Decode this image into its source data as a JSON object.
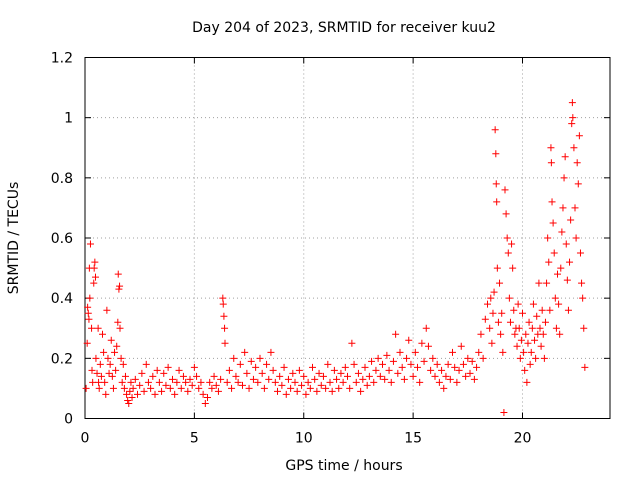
{
  "chart_data": {
    "type": "scatter",
    "title": "Day 204 of 2023, SRMTID for receiver kuu2",
    "xlabel": "GPS time / hours",
    "ylabel": "SRMTID / TECUs",
    "xlim": [
      0,
      24
    ],
    "ylim": [
      0,
      1.2
    ],
    "xticks": [
      0,
      5,
      10,
      15,
      20
    ],
    "xtick_labels": [
      "0",
      "5",
      "10",
      "15",
      "20"
    ],
    "yticks": [
      0,
      0.2,
      0.4,
      0.6,
      0.8,
      1,
      1.2
    ],
    "ytick_labels": [
      "0",
      "0.2",
      "0.4",
      "0.6",
      "0.8",
      "1",
      "1.2"
    ],
    "grid": true,
    "marker": "+",
    "color": "#ff0000",
    "series": [
      {
        "name": "SRMTID",
        "points": [
          [
            0.05,
            0.1
          ],
          [
            0.1,
            0.25
          ],
          [
            0.12,
            0.37
          ],
          [
            0.15,
            0.35
          ],
          [
            0.18,
            0.33
          ],
          [
            0.2,
            0.5
          ],
          [
            0.22,
            0.4
          ],
          [
            0.25,
            0.58
          ],
          [
            0.3,
            0.3
          ],
          [
            0.32,
            0.16
          ],
          [
            0.35,
            0.12
          ],
          [
            0.4,
            0.45
          ],
          [
            0.42,
            0.5
          ],
          [
            0.45,
            0.52
          ],
          [
            0.48,
            0.47
          ],
          [
            0.5,
            0.2
          ],
          [
            0.55,
            0.15
          ],
          [
            0.6,
            0.3
          ],
          [
            0.62,
            0.12
          ],
          [
            0.65,
            0.1
          ],
          [
            0.7,
            0.18
          ],
          [
            0.75,
            0.14
          ],
          [
            0.8,
            0.28
          ],
          [
            0.85,
            0.22
          ],
          [
            0.9,
            0.12
          ],
          [
            0.95,
            0.08
          ],
          [
            1.0,
            0.36
          ],
          [
            1.05,
            0.2
          ],
          [
            1.1,
            0.15
          ],
          [
            1.15,
            0.18
          ],
          [
            1.2,
            0.26
          ],
          [
            1.25,
            0.14
          ],
          [
            1.3,
            0.1
          ],
          [
            1.35,
            0.22
          ],
          [
            1.4,
            0.16
          ],
          [
            1.45,
            0.24
          ],
          [
            1.5,
            0.32
          ],
          [
            1.52,
            0.48
          ],
          [
            1.55,
            0.43
          ],
          [
            1.58,
            0.44
          ],
          [
            1.6,
            0.3
          ],
          [
            1.65,
            0.2
          ],
          [
            1.7,
            0.12
          ],
          [
            1.75,
            0.18
          ],
          [
            1.8,
            0.1
          ],
          [
            1.85,
            0.14
          ],
          [
            1.9,
            0.08
          ],
          [
            1.95,
            0.06
          ],
          [
            2.0,
            0.05
          ],
          [
            2.05,
            0.09
          ],
          [
            2.1,
            0.12
          ],
          [
            2.15,
            0.07
          ],
          [
            2.2,
            0.1
          ],
          [
            2.3,
            0.13
          ],
          [
            2.4,
            0.08
          ],
          [
            2.5,
            0.11
          ],
          [
            2.6,
            0.15
          ],
          [
            2.7,
            0.09
          ],
          [
            2.8,
            0.18
          ],
          [
            2.9,
            0.12
          ],
          [
            3.0,
            0.1
          ],
          [
            3.1,
            0.14
          ],
          [
            3.2,
            0.08
          ],
          [
            3.3,
            0.16
          ],
          [
            3.4,
            0.12
          ],
          [
            3.5,
            0.09
          ],
          [
            3.6,
            0.15
          ],
          [
            3.7,
            0.11
          ],
          [
            3.8,
            0.17
          ],
          [
            3.9,
            0.1
          ],
          [
            4.0,
            0.13
          ],
          [
            4.1,
            0.08
          ],
          [
            4.2,
            0.12
          ],
          [
            4.3,
            0.16
          ],
          [
            4.4,
            0.1
          ],
          [
            4.5,
            0.14
          ],
          [
            4.6,
            0.12
          ],
          [
            4.7,
            0.09
          ],
          [
            4.8,
            0.13
          ],
          [
            4.9,
            0.11
          ],
          [
            5.0,
            0.17
          ],
          [
            5.1,
            0.14
          ],
          [
            5.2,
            0.1
          ],
          [
            5.3,
            0.12
          ],
          [
            5.4,
            0.08
          ],
          [
            5.5,
            0.05
          ],
          [
            5.6,
            0.07
          ],
          [
            5.7,
            0.12
          ],
          [
            5.8,
            0.1
          ],
          [
            5.9,
            0.14
          ],
          [
            6.0,
            0.11
          ],
          [
            6.1,
            0.09
          ],
          [
            6.2,
            0.13
          ],
          [
            6.3,
            0.4
          ],
          [
            6.32,
            0.38
          ],
          [
            6.35,
            0.34
          ],
          [
            6.38,
            0.3
          ],
          [
            6.4,
            0.25
          ],
          [
            6.5,
            0.12
          ],
          [
            6.6,
            0.16
          ],
          [
            6.7,
            0.1
          ],
          [
            6.8,
            0.2
          ],
          [
            6.9,
            0.14
          ],
          [
            7.0,
            0.12
          ],
          [
            7.1,
            0.18
          ],
          [
            7.2,
            0.11
          ],
          [
            7.3,
            0.22
          ],
          [
            7.4,
            0.15
          ],
          [
            7.5,
            0.1
          ],
          [
            7.6,
            0.19
          ],
          [
            7.7,
            0.13
          ],
          [
            7.8,
            0.17
          ],
          [
            7.9,
            0.12
          ],
          [
            8.0,
            0.2
          ],
          [
            8.1,
            0.15
          ],
          [
            8.2,
            0.1
          ],
          [
            8.3,
            0.18
          ],
          [
            8.4,
            0.13
          ],
          [
            8.5,
            0.22
          ],
          [
            8.6,
            0.16
          ],
          [
            8.7,
            0.12
          ],
          [
            8.8,
            0.09
          ],
          [
            8.9,
            0.14
          ],
          [
            9.0,
            0.11
          ],
          [
            9.1,
            0.17
          ],
          [
            9.2,
            0.08
          ],
          [
            9.3,
            0.13
          ],
          [
            9.4,
            0.1
          ],
          [
            9.5,
            0.15
          ],
          [
            9.6,
            0.12
          ],
          [
            9.7,
            0.09
          ],
          [
            9.8,
            0.16
          ],
          [
            9.9,
            0.11
          ],
          [
            10.0,
            0.14
          ],
          [
            10.1,
            0.08
          ],
          [
            10.2,
            0.12
          ],
          [
            10.3,
            0.1
          ],
          [
            10.4,
            0.17
          ],
          [
            10.5,
            0.13
          ],
          [
            10.6,
            0.09
          ],
          [
            10.7,
            0.15
          ],
          [
            10.8,
            0.11
          ],
          [
            10.9,
            0.14
          ],
          [
            11.0,
            0.1
          ],
          [
            11.1,
            0.18
          ],
          [
            11.2,
            0.12
          ],
          [
            11.3,
            0.09
          ],
          [
            11.4,
            0.16
          ],
          [
            11.5,
            0.13
          ],
          [
            11.6,
            0.1
          ],
          [
            11.7,
            0.15
          ],
          [
            11.8,
            0.12
          ],
          [
            11.9,
            0.17
          ],
          [
            12.0,
            0.14
          ],
          [
            12.1,
            0.1
          ],
          [
            12.2,
            0.25
          ],
          [
            12.3,
            0.18
          ],
          [
            12.4,
            0.12
          ],
          [
            12.5,
            0.15
          ],
          [
            12.6,
            0.09
          ],
          [
            12.7,
            0.13
          ],
          [
            12.8,
            0.17
          ],
          [
            12.9,
            0.11
          ],
          [
            13.0,
            0.14
          ],
          [
            13.1,
            0.19
          ],
          [
            13.2,
            0.12
          ],
          [
            13.3,
            0.16
          ],
          [
            13.4,
            0.2
          ],
          [
            13.5,
            0.14
          ],
          [
            13.6,
            0.18
          ],
          [
            13.7,
            0.13
          ],
          [
            13.8,
            0.21
          ],
          [
            13.9,
            0.16
          ],
          [
            14.0,
            0.12
          ],
          [
            14.1,
            0.19
          ],
          [
            14.2,
            0.28
          ],
          [
            14.3,
            0.15
          ],
          [
            14.4,
            0.22
          ],
          [
            14.5,
            0.17
          ],
          [
            14.6,
            0.13
          ],
          [
            14.7,
            0.2
          ],
          [
            14.8,
            0.26
          ],
          [
            14.9,
            0.18
          ],
          [
            15.0,
            0.14
          ],
          [
            15.1,
            0.22
          ],
          [
            15.2,
            0.17
          ],
          [
            15.3,
            0.12
          ],
          [
            15.4,
            0.25
          ],
          [
            15.5,
            0.19
          ],
          [
            15.6,
            0.3
          ],
          [
            15.7,
            0.24
          ],
          [
            15.8,
            0.16
          ],
          [
            15.9,
            0.2
          ],
          [
            16.0,
            0.14
          ],
          [
            16.1,
            0.18
          ],
          [
            16.2,
            0.12
          ],
          [
            16.3,
            0.16
          ],
          [
            16.4,
            0.1
          ],
          [
            16.5,
            0.14
          ],
          [
            16.6,
            0.18
          ],
          [
            16.7,
            0.13
          ],
          [
            16.8,
            0.22
          ],
          [
            16.9,
            0.17
          ],
          [
            17.0,
            0.12
          ],
          [
            17.1,
            0.16
          ],
          [
            17.2,
            0.24
          ],
          [
            17.3,
            0.18
          ],
          [
            17.4,
            0.14
          ],
          [
            17.5,
            0.2
          ],
          [
            17.6,
            0.15
          ],
          [
            17.7,
            0.19
          ],
          [
            17.8,
            0.13
          ],
          [
            17.9,
            0.17
          ],
          [
            18.0,
            0.22
          ],
          [
            18.1,
            0.28
          ],
          [
            18.2,
            0.2
          ],
          [
            18.3,
            0.33
          ],
          [
            18.4,
            0.38
          ],
          [
            18.5,
            0.3
          ],
          [
            18.55,
            0.4
          ],
          [
            18.6,
            0.25
          ],
          [
            18.65,
            0.35
          ],
          [
            18.7,
            0.42
          ],
          [
            18.75,
            0.96
          ],
          [
            18.78,
            0.88
          ],
          [
            18.8,
            0.78
          ],
          [
            18.82,
            0.72
          ],
          [
            18.85,
            0.5
          ],
          [
            18.9,
            0.32
          ],
          [
            18.95,
            0.45
          ],
          [
            19.0,
            0.28
          ],
          [
            19.05,
            0.35
          ],
          [
            19.1,
            0.22
          ],
          [
            19.15,
            0.02
          ],
          [
            19.2,
            0.76
          ],
          [
            19.25,
            0.68
          ],
          [
            19.3,
            0.6
          ],
          [
            19.35,
            0.55
          ],
          [
            19.4,
            0.4
          ],
          [
            19.45,
            0.32
          ],
          [
            19.5,
            0.58
          ],
          [
            19.55,
            0.5
          ],
          [
            19.6,
            0.36
          ],
          [
            19.65,
            0.28
          ],
          [
            19.7,
            0.3
          ],
          [
            19.75,
            0.24
          ],
          [
            19.8,
            0.38
          ],
          [
            19.85,
            0.3
          ],
          [
            19.9,
            0.2
          ],
          [
            19.95,
            0.26
          ],
          [
            20.0,
            0.35
          ],
          [
            20.05,
            0.22
          ],
          [
            20.1,
            0.16
          ],
          [
            20.15,
            0.28
          ],
          [
            20.2,
            0.12
          ],
          [
            20.25,
            0.25
          ],
          [
            20.3,
            0.32
          ],
          [
            20.35,
            0.18
          ],
          [
            20.4,
            0.22
          ],
          [
            20.45,
            0.3
          ],
          [
            20.5,
            0.38
          ],
          [
            20.55,
            0.26
          ],
          [
            20.6,
            0.2
          ],
          [
            20.65,
            0.34
          ],
          [
            20.7,
            0.28
          ],
          [
            20.75,
            0.45
          ],
          [
            20.8,
            0.3
          ],
          [
            20.85,
            0.24
          ],
          [
            20.9,
            0.36
          ],
          [
            20.95,
            0.28
          ],
          [
            21.0,
            0.2
          ],
          [
            21.05,
            0.32
          ],
          [
            21.1,
            0.45
          ],
          [
            21.15,
            0.6
          ],
          [
            21.2,
            0.52
          ],
          [
            21.25,
            0.36
          ],
          [
            21.3,
            0.9
          ],
          [
            21.32,
            0.85
          ],
          [
            21.35,
            0.72
          ],
          [
            21.4,
            0.65
          ],
          [
            21.45,
            0.55
          ],
          [
            21.5,
            0.4
          ],
          [
            21.55,
            0.3
          ],
          [
            21.6,
            0.48
          ],
          [
            21.65,
            0.38
          ],
          [
            21.7,
            0.28
          ],
          [
            21.75,
            0.5
          ],
          [
            21.8,
            0.62
          ],
          [
            21.85,
            0.7
          ],
          [
            21.9,
            0.8
          ],
          [
            21.95,
            0.87
          ],
          [
            22.0,
            0.58
          ],
          [
            22.05,
            0.46
          ],
          [
            22.1,
            0.36
          ],
          [
            22.15,
            0.52
          ],
          [
            22.2,
            0.66
          ],
          [
            22.25,
            0.98
          ],
          [
            22.28,
            1.05
          ],
          [
            22.3,
            1.0
          ],
          [
            22.35,
            0.9
          ],
          [
            22.4,
            0.7
          ],
          [
            22.45,
            0.6
          ],
          [
            22.5,
            0.85
          ],
          [
            22.55,
            0.78
          ],
          [
            22.6,
            0.94
          ],
          [
            22.65,
            0.55
          ],
          [
            22.7,
            0.45
          ],
          [
            22.75,
            0.4
          ],
          [
            22.8,
            0.3
          ],
          [
            22.85,
            0.17
          ]
        ]
      }
    ]
  }
}
